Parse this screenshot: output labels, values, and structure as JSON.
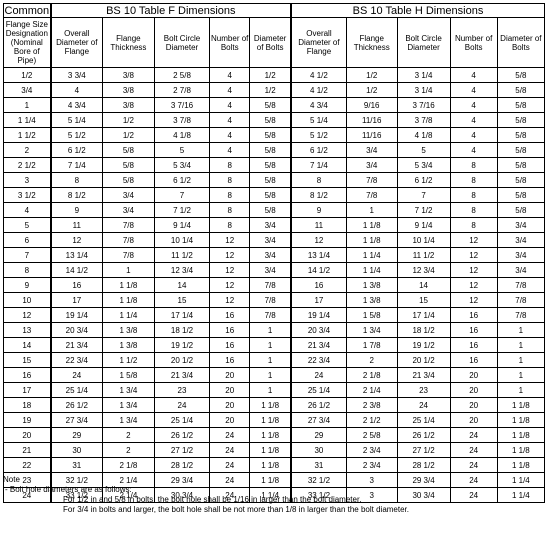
{
  "header": {
    "common": "Common",
    "group_f": "BS 10 Table F Dimensions",
    "group_h": "BS 10 Table H Dimensions"
  },
  "columns": [
    "Flange Size Designation (Nominal Bore of Pipe)",
    "Overall Diameter of Flange",
    "Flange Thickness",
    "Bolt Circle Diameter",
    "Number of Bolts",
    "Diameter of Bolts",
    "Overall Diameter of Flange",
    "Flange Thickness",
    "Bolt Circle Diameter",
    "Number of Bolts",
    "Diameter of Bolts"
  ],
  "rows": [
    [
      "1/2",
      "3 3/4",
      "3/8",
      "2 5/8",
      "4",
      "1/2",
      "4 1/2",
      "1/2",
      "3 1/4",
      "4",
      "5/8"
    ],
    [
      "3/4",
      "4",
      "3/8",
      "2 7/8",
      "4",
      "1/2",
      "4 1/2",
      "1/2",
      "3 1/4",
      "4",
      "5/8"
    ],
    [
      "1",
      "4 3/4",
      "3/8",
      "3 7/16",
      "4",
      "5/8",
      "4 3/4",
      "9/16",
      "3 7/16",
      "4",
      "5/8"
    ],
    [
      "1 1/4",
      "5 1/4",
      "1/2",
      "3 7/8",
      "4",
      "5/8",
      "5 1/4",
      "11/16",
      "3 7/8",
      "4",
      "5/8"
    ],
    [
      "1 1/2",
      "5 1/2",
      "1/2",
      "4 1/8",
      "4",
      "5/8",
      "5 1/2",
      "11/16",
      "4 1/8",
      "4",
      "5/8"
    ],
    [
      "2",
      "6 1/2",
      "5/8",
      "5",
      "4",
      "5/8",
      "6 1/2",
      "3/4",
      "5",
      "4",
      "5/8"
    ],
    [
      "2 1/2",
      "7 1/4",
      "5/8",
      "5 3/4",
      "8",
      "5/8",
      "7 1/4",
      "3/4",
      "5 3/4",
      "8",
      "5/8"
    ],
    [
      "3",
      "8",
      "5/8",
      "6 1/2",
      "8",
      "5/8",
      "8",
      "7/8",
      "6 1/2",
      "8",
      "5/8"
    ],
    [
      "3 1/2",
      "8 1/2",
      "3/4",
      "7",
      "8",
      "5/8",
      "8 1/2",
      "7/8",
      "7",
      "8",
      "5/8"
    ],
    [
      "4",
      "9",
      "3/4",
      "7 1/2",
      "8",
      "5/8",
      "9",
      "1",
      "7 1/2",
      "8",
      "5/8"
    ],
    [
      "5",
      "11",
      "7/8",
      "9 1/4",
      "8",
      "3/4",
      "11",
      "1 1/8",
      "9 1/4",
      "8",
      "3/4"
    ],
    [
      "6",
      "12",
      "7/8",
      "10 1/4",
      "12",
      "3/4",
      "12",
      "1 1/8",
      "10 1/4",
      "12",
      "3/4"
    ],
    [
      "7",
      "13 1/4",
      "7/8",
      "11 1/2",
      "12",
      "3/4",
      "13 1/4",
      "1 1/4",
      "11 1/2",
      "12",
      "3/4"
    ],
    [
      "8",
      "14 1/2",
      "1",
      "12 3/4",
      "12",
      "3/4",
      "14 1/2",
      "1 1/4",
      "12 3/4",
      "12",
      "3/4"
    ],
    [
      "9",
      "16",
      "1 1/8",
      "14",
      "12",
      "7/8",
      "16",
      "1 3/8",
      "14",
      "12",
      "7/8"
    ],
    [
      "10",
      "17",
      "1 1/8",
      "15",
      "12",
      "7/8",
      "17",
      "1 3/8",
      "15",
      "12",
      "7/8"
    ],
    [
      "12",
      "19 1/4",
      "1 1/4",
      "17 1/4",
      "16",
      "7/8",
      "19 1/4",
      "1 5/8",
      "17 1/4",
      "16",
      "7/8"
    ],
    [
      "13",
      "20 3/4",
      "1 3/8",
      "18 1/2",
      "16",
      "1",
      "20 3/4",
      "1 3/4",
      "18 1/2",
      "16",
      "1"
    ],
    [
      "14",
      "21 3/4",
      "1 3/8",
      "19 1/2",
      "16",
      "1",
      "21 3/4",
      "1 7/8",
      "19 1/2",
      "16",
      "1"
    ],
    [
      "15",
      "22 3/4",
      "1 1/2",
      "20 1/2",
      "16",
      "1",
      "22 3/4",
      "2",
      "20 1/2",
      "16",
      "1"
    ],
    [
      "16",
      "24",
      "1 5/8",
      "21 3/4",
      "20",
      "1",
      "24",
      "2 1/8",
      "21 3/4",
      "20",
      "1"
    ],
    [
      "17",
      "25 1/4",
      "1 3/4",
      "23",
      "20",
      "1",
      "25 1/4",
      "2 1/4",
      "23",
      "20",
      "1"
    ],
    [
      "18",
      "26 1/2",
      "1 3/4",
      "24",
      "20",
      "1 1/8",
      "26 1/2",
      "2 3/8",
      "24",
      "20",
      "1 1/8"
    ],
    [
      "19",
      "27 3/4",
      "1 3/4",
      "25 1/4",
      "20",
      "1 1/8",
      "27 3/4",
      "2 1/2",
      "25 1/4",
      "20",
      "1 1/8"
    ],
    [
      "20",
      "29",
      "2",
      "26 1/2",
      "24",
      "1 1/8",
      "29",
      "2 5/8",
      "26 1/2",
      "24",
      "1 1/8"
    ],
    [
      "21",
      "30",
      "2",
      "27 1/2",
      "24",
      "1 1/8",
      "30",
      "2 3/4",
      "27 1/2",
      "24",
      "1 1/8"
    ],
    [
      "22",
      "31",
      "2 1/8",
      "28 1/2",
      "24",
      "1 1/8",
      "31",
      "2 3/4",
      "28 1/2",
      "24",
      "1 1/8"
    ],
    [
      "23",
      "32 1/2",
      "2 1/4",
      "29 3/4",
      "24",
      "1 1/8",
      "32 1/2",
      "3",
      "29 3/4",
      "24",
      "1 1/4"
    ],
    [
      "24",
      "33 1/2",
      "2 1/4",
      "30 3/4",
      "24",
      "1 1/4",
      "33 1/2",
      "3",
      "30 3/4",
      "24",
      "1 1/4"
    ]
  ],
  "notes": {
    "title": "Note",
    "bullet": "-    Bolt hole diameters are as follows:",
    "line1": "For 1/2 in and 5/8 in bolts, the bolt hole shall be 1/16 in larger than the bolt diameter.",
    "line2": "For 3/4 in bolts and larger, the bolt hole shall be not more than 1/8 in larger than the bolt diameter."
  }
}
